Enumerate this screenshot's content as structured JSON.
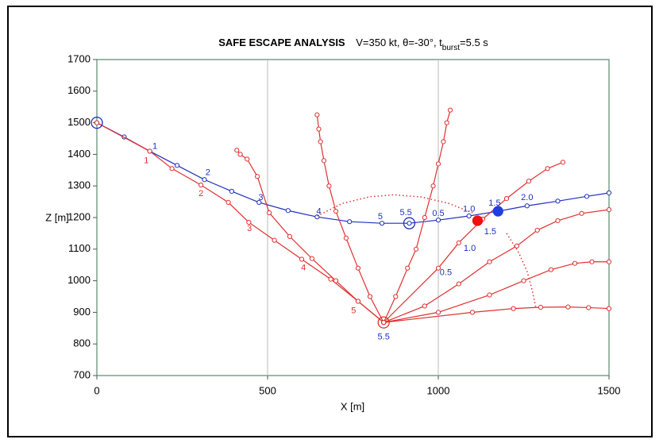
{
  "chart_data": {
    "type": "line",
    "title": "SAFE ESCAPE ANALYSIS",
    "title_parts": [
      "V=350 kt, θ=-30°, t",
      "burst",
      "=5.5 s"
    ],
    "x_label": "X [m]",
    "y_label": "Z [m]",
    "xlim": [
      0,
      1500
    ],
    "ylim": [
      700,
      1700
    ],
    "xticks": [
      0,
      500,
      1000,
      1500
    ],
    "yticks": [
      700,
      800,
      900,
      1000,
      1100,
      1200,
      1300,
      1400,
      1500,
      1600,
      1700
    ],
    "xgrid": true,
    "series": [
      {
        "color": "#1f2fbf",
        "style": "solid",
        "markers": true,
        "x": [
          0,
          80,
          155,
          235,
          315,
          395,
          475,
          560,
          645,
          740,
          835,
          915,
          1000,
          1090,
          1175,
          1260,
          1350,
          1435,
          1500
        ],
        "values": [
          1500,
          1455,
          1410,
          1365,
          1320,
          1283,
          1248,
          1222,
          1202,
          1187,
          1182,
          1182,
          1192,
          1205,
          1220,
          1237,
          1252,
          1267,
          1278
        ]
      },
      {
        "color": "#e03030",
        "style": "solid",
        "markers": true,
        "x": [
          0,
          155,
          220,
          305,
          385,
          445,
          520,
          600,
          685,
          765,
          840
        ],
        "values": [
          1500,
          1410,
          1355,
          1303,
          1248,
          1185,
          1128,
          1068,
          1005,
          935,
          868
        ]
      },
      {
        "color": "#e03030",
        "style": "solid",
        "markers": true,
        "x": [
          840,
          765,
          700,
          630,
          565,
          505,
          470,
          440,
          420,
          410
        ],
        "values": [
          868,
          935,
          1000,
          1070,
          1140,
          1215,
          1330,
          1385,
          1400,
          1413
        ]
      },
      {
        "color": "#e03030",
        "style": "solid",
        "markers": true,
        "x": [
          840,
          800,
          765,
          730,
          700,
          680,
          665,
          655,
          650,
          645
        ],
        "values": [
          868,
          950,
          1040,
          1135,
          1220,
          1300,
          1380,
          1440,
          1480,
          1525
        ]
      },
      {
        "color": "#e03030",
        "style": "solid",
        "markers": true,
        "x": [
          840,
          875,
          910,
          935,
          960,
          985,
          1000,
          1015,
          1025,
          1035
        ],
        "values": [
          868,
          950,
          1040,
          1100,
          1200,
          1300,
          1370,
          1440,
          1500,
          1540
        ]
      },
      {
        "color": "#e03030",
        "style": "solid",
        "markers": true,
        "x": [
          840,
          1000,
          1060,
          1130,
          1200,
          1265,
          1320,
          1365
        ],
        "values": [
          868,
          1040,
          1120,
          1195,
          1260,
          1315,
          1355,
          1375
        ]
      },
      {
        "color": "#e03030",
        "style": "solid",
        "markers": true,
        "x": [
          840,
          960,
          1060,
          1150,
          1230,
          1290,
          1350,
          1420,
          1500
        ],
        "values": [
          868,
          920,
          990,
          1060,
          1110,
          1160,
          1190,
          1213,
          1225
        ]
      },
      {
        "color": "#e03030",
        "style": "solid",
        "markers": true,
        "x": [
          840,
          1000,
          1150,
          1250,
          1330,
          1400,
          1450,
          1500
        ],
        "values": [
          868,
          900,
          955,
          1000,
          1035,
          1055,
          1060,
          1060
        ]
      },
      {
        "color": "#e03030",
        "style": "solid",
        "markers": true,
        "x": [
          840,
          1100,
          1220,
          1300,
          1380,
          1440,
          1500
        ],
        "values": [
          868,
          900,
          912,
          916,
          917,
          915,
          912
        ]
      },
      {
        "color": "#e03030",
        "style": "dotted",
        "markers": false,
        "x": [
          645,
          720,
          800,
          870,
          950,
          1030,
          1100
        ],
        "values": [
          1205,
          1245,
          1266,
          1272,
          1265,
          1245,
          1215
        ]
      },
      {
        "color": "#e03030",
        "style": "dotted",
        "markers": false,
        "x": [
          1200,
          1235,
          1260,
          1275,
          1285
        ],
        "values": [
          1150,
          1090,
          1030,
          970,
          918
        ]
      }
    ],
    "points": [
      {
        "x": 0,
        "y": 1500,
        "color": "#1f2fbf",
        "style": "big-open"
      },
      {
        "x": 915,
        "y": 1182,
        "color": "#1f2fbf",
        "style": "big-open"
      },
      {
        "x": 840,
        "y": 868,
        "color": "#e03030",
        "style": "big-open"
      },
      {
        "x": 1115,
        "y": 1190,
        "color": "#ee1111",
        "style": "big-filled"
      },
      {
        "x": 1175,
        "y": 1220,
        "color": "#1f3fdf",
        "style": "big-filled"
      }
    ],
    "annotations": [
      {
        "text": "1",
        "x": 170,
        "y": 1425,
        "color": "#1f2fbf"
      },
      {
        "text": "2",
        "x": 325,
        "y": 1342,
        "color": "#1f2fbf"
      },
      {
        "text": "3",
        "x": 480,
        "y": 1262,
        "color": "#1f2fbf"
      },
      {
        "text": "4",
        "x": 650,
        "y": 1218,
        "color": "#1f2fbf"
      },
      {
        "text": "5",
        "x": 830,
        "y": 1202,
        "color": "#1f2fbf"
      },
      {
        "text": "5.5",
        "x": 905,
        "y": 1215,
        "color": "#1f2fbf"
      },
      {
        "text": "0.5",
        "x": 1000,
        "y": 1212,
        "color": "#1f2fbf"
      },
      {
        "text": "1.0",
        "x": 1090,
        "y": 1226,
        "color": "#1f2fbf"
      },
      {
        "text": "1.5",
        "x": 1165,
        "y": 1245,
        "color": "#1f2fbf"
      },
      {
        "text": "2.0",
        "x": 1260,
        "y": 1262,
        "color": "#1f2fbf"
      },
      {
        "text": "1",
        "x": 145,
        "y": 1380,
        "color": "#e03030"
      },
      {
        "text": "2",
        "x": 305,
        "y": 1275,
        "color": "#e03030"
      },
      {
        "text": "3",
        "x": 447,
        "y": 1165,
        "color": "#e03030"
      },
      {
        "text": "4",
        "x": 605,
        "y": 1040,
        "color": "#e03030"
      },
      {
        "text": "5",
        "x": 752,
        "y": 905,
        "color": "#e03030"
      },
      {
        "text": "5.5",
        "x": 840,
        "y": 822,
        "color": "#1f2fbf"
      },
      {
        "text": "0.5",
        "x": 1022,
        "y": 1025,
        "color": "#1f2fbf"
      },
      {
        "text": "1.0",
        "x": 1092,
        "y": 1102,
        "color": "#1f2fbf"
      },
      {
        "text": "1.5",
        "x": 1152,
        "y": 1155,
        "color": "#1f2fbf"
      }
    ]
  }
}
